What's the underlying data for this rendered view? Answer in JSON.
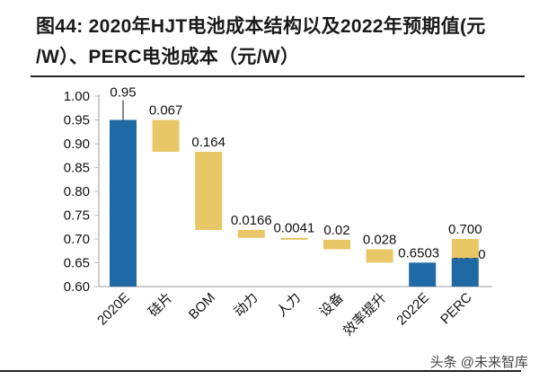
{
  "title_line1": "图44: 2020年HJT电池成本结构以及2022年预期值(元",
  "title_line2": "/W）、PERC电池成本（元/W）",
  "watermark": "头条 @未来智库",
  "chart_data": {
    "type": "bar",
    "subtype": "waterfall",
    "categories": [
      "2020E",
      "硅片",
      "BOM",
      "动力",
      "人力",
      "设备",
      "效率提升",
      "2022E",
      "PERC"
    ],
    "bars": [
      {
        "category": "2020E",
        "base": 0.6,
        "top": 0.95,
        "label": "0.95",
        "kind": "total"
      },
      {
        "category": "硅片",
        "base": 0.883,
        "top": 0.95,
        "label": "0.067",
        "kind": "delta"
      },
      {
        "category": "BOM",
        "base": 0.719,
        "top": 0.883,
        "label": "0.164",
        "kind": "delta"
      },
      {
        "category": "动力",
        "base": 0.7024,
        "top": 0.719,
        "label": "0.0166",
        "kind": "delta"
      },
      {
        "category": "人力",
        "base": 0.6983,
        "top": 0.7024,
        "label": "0.0041",
        "kind": "delta"
      },
      {
        "category": "设备",
        "base": 0.6783,
        "top": 0.6983,
        "label": "0.02",
        "kind": "delta"
      },
      {
        "category": "效率提升",
        "base": 0.6503,
        "top": 0.6783,
        "label": "0.028",
        "kind": "delta"
      },
      {
        "category": "2022E",
        "base": 0.6,
        "top": 0.6503,
        "label": "0.6503",
        "kind": "total"
      },
      {
        "category": "PERC",
        "base": 0.6,
        "top": 0.66,
        "label": "0.660",
        "kind": "total"
      },
      {
        "category": "PERC",
        "base": 0.66,
        "top": 0.7,
        "label": "0.700",
        "kind": "delta"
      }
    ],
    "yticks": [
      "0.60",
      "0.65",
      "0.70",
      "0.75",
      "0.80",
      "0.85",
      "0.90",
      "0.95",
      "1.00"
    ],
    "ylim": [
      0.6,
      1.0
    ],
    "grid": false,
    "colors": {
      "total": "#1f6aa5",
      "delta": "#e8c766"
    }
  }
}
